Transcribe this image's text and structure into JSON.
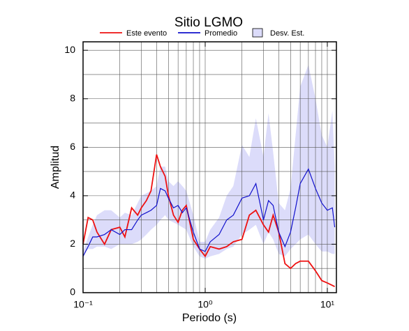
{
  "chart_data": {
    "type": "line",
    "title": "Sitio LGMO",
    "x_label": "Periodo (s)",
    "y_label": "Amplitud",
    "xscale": "log",
    "grid": true,
    "xlim": [
      0.1,
      11.87
    ],
    "ylim": [
      0,
      10.35
    ],
    "xticks": [
      {
        "value": 0.1,
        "label": "10⁻¹"
      },
      {
        "value": 1,
        "label": "10⁰"
      },
      {
        "value": 10,
        "label": "10¹"
      }
    ],
    "xminor": [
      0.2,
      0.3,
      0.4,
      0.5,
      0.6,
      0.7,
      0.8,
      0.9,
      2,
      3,
      4,
      5,
      6,
      7,
      8,
      9
    ],
    "yticks": [
      0,
      2,
      4,
      6,
      8,
      10
    ],
    "yminor": [
      1,
      3,
      5,
      7,
      9
    ],
    "x": [
      0.1,
      0.11,
      0.12,
      0.13,
      0.15,
      0.17,
      0.2,
      0.22,
      0.25,
      0.28,
      0.3,
      0.33,
      0.36,
      0.4,
      0.43,
      0.47,
      0.5,
      0.55,
      0.6,
      0.65,
      0.7,
      0.8,
      0.9,
      1.0,
      1.1,
      1.3,
      1.5,
      1.7,
      2.0,
      2.3,
      2.6,
      3.0,
      3.3,
      3.6,
      4.0,
      4.5,
      5,
      5.5,
      6,
      7,
      8,
      9,
      10,
      11,
      11.5
    ],
    "series": [
      {
        "name": "Este evento",
        "color": "#ee1111",
        "kind": "line",
        "values": [
          2.0,
          3.1,
          3.0,
          2.5,
          2.0,
          2.6,
          2.7,
          2.3,
          3.5,
          3.2,
          3.5,
          3.8,
          4.2,
          5.7,
          5.2,
          4.8,
          4.0,
          3.2,
          2.9,
          3.4,
          3.6,
          2.2,
          1.8,
          1.5,
          1.9,
          1.8,
          1.9,
          2.1,
          2.2,
          3.2,
          3.4,
          2.8,
          2.5,
          3.2,
          2.5,
          1.2,
          1.0,
          1.2,
          1.3,
          1.3,
          0.9,
          0.5,
          0.4,
          0.3,
          0.25
        ]
      },
      {
        "name": "Promedio",
        "color": "#1111cc",
        "kind": "line",
        "values": [
          1.5,
          1.9,
          2.3,
          2.3,
          2.4,
          2.6,
          2.4,
          2.6,
          2.6,
          3.0,
          3.2,
          3.3,
          3.4,
          3.6,
          4.3,
          4.2,
          3.9,
          3.5,
          3.6,
          3.3,
          3.5,
          2.5,
          1.8,
          1.7,
          2.1,
          2.4,
          3.0,
          3.2,
          3.9,
          4.0,
          4.5,
          3.0,
          3.8,
          3.6,
          2.5,
          1.9,
          2.5,
          3.5,
          4.5,
          5.1,
          4.3,
          3.7,
          3.4,
          3.5,
          2.7
        ]
      },
      {
        "name": "Desv. Est.",
        "color": "#dcdcfa",
        "kind": "band",
        "lower": [
          1.6,
          1.8,
          1.8,
          1.9,
          1.9,
          1.8,
          2.0,
          2.0,
          2.0,
          2.1,
          2.2,
          2.4,
          2.6,
          2.8,
          3.0,
          3.2,
          3.0,
          2.9,
          2.8,
          2.7,
          2.6,
          1.9,
          1.5,
          1.4,
          1.5,
          1.6,
          1.8,
          1.9,
          2.4,
          2.6,
          2.8,
          2.0,
          2.5,
          2.2,
          1.6,
          1.5,
          1.8,
          2.0,
          2.2,
          2.4,
          2.0,
          1.7,
          1.7,
          1.6,
          1.6
        ],
        "upper": [
          1.7,
          2.3,
          2.8,
          3.2,
          3.4,
          3.4,
          3.1,
          3.3,
          3.2,
          3.7,
          4.0,
          4.1,
          4.2,
          4.4,
          5.2,
          5.2,
          4.6,
          4.4,
          4.6,
          4.4,
          4.2,
          3.2,
          2.1,
          2.1,
          2.6,
          3.1,
          4.0,
          4.4,
          6.1,
          5.6,
          7.2,
          5.6,
          7.4,
          5.8,
          3.7,
          3.4,
          4.3,
          6.5,
          8.5,
          9.4,
          8.0,
          6.5,
          6.0,
          7.5,
          5.2
        ]
      }
    ]
  }
}
